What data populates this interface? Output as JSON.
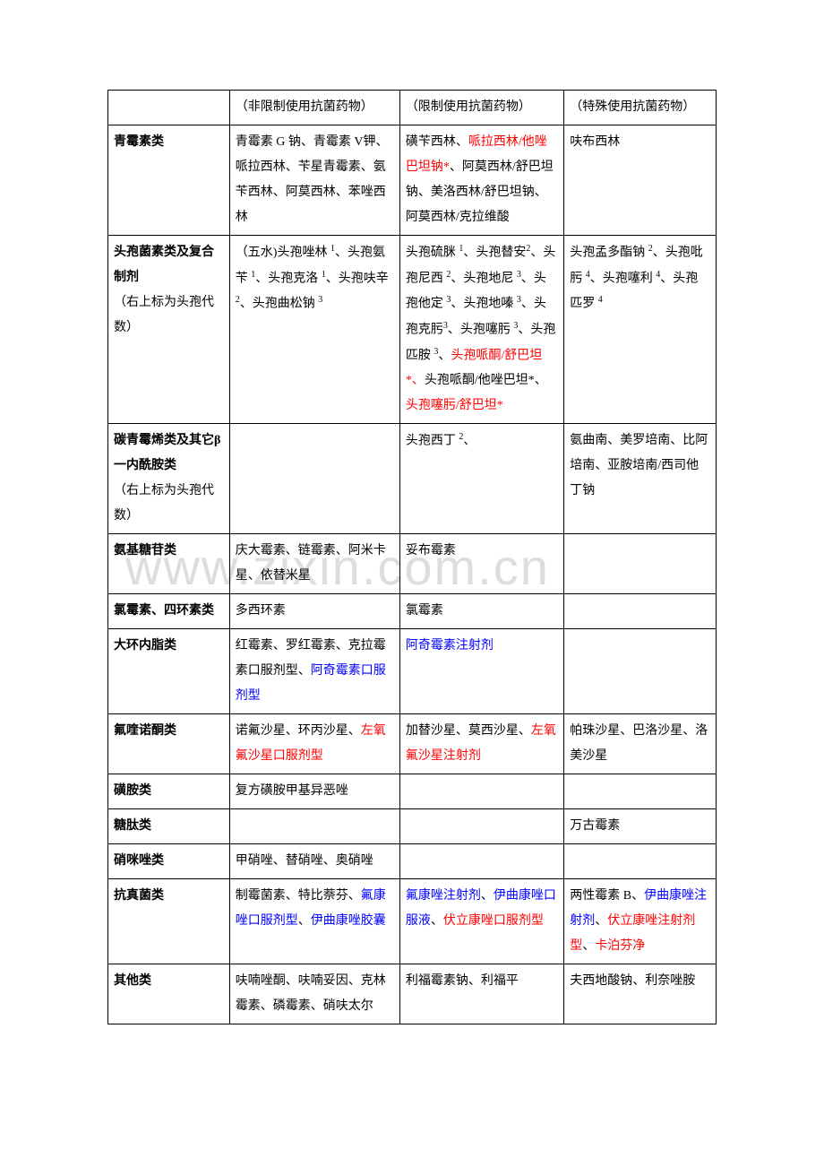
{
  "watermark": "www.zixin.com.cn",
  "header": {
    "col1": "（非限制使用抗菌药物）",
    "col2": "（限制使用抗菌药物）",
    "col3": "（特殊使用抗菌药物）"
  },
  "rows": [
    {
      "category_bold": "青霉素类",
      "category_normal": "",
      "col1_parts": [
        {
          "text": "青霉素 G 钠、青霉素 V钾、哌拉西林、苄星青霉素、氨苄西林、阿莫西林、苯唑西林",
          "color": "black"
        }
      ],
      "col2_parts": [
        {
          "text": "磺苄西林、",
          "color": "black"
        },
        {
          "text": "哌拉西林/他唑巴坦钠*",
          "color": "red"
        },
        {
          "text": "、阿莫西林/舒巴坦钠、美洛西林/舒巴坦钠、阿莫西林/克拉维酸",
          "color": "black"
        }
      ],
      "col3_parts": [
        {
          "text": "呋布西林",
          "color": "black"
        }
      ]
    },
    {
      "category_bold": "头孢菌素类及复合制剂",
      "category_normal": "（右上标为头孢代数）",
      "col1_html": "（五水)头孢唑林 <sup>1</sup>、头孢氨苄 <sup>1</sup>、头孢克洛 <sup>1</sup>、头孢呋辛 <sup>2</sup>、头孢曲松钠 <sup>3</sup>",
      "col2_html": "头孢硫脒 <sup>1</sup>、头孢替安<sup>2</sup>、头孢尼西 <sup>2</sup>、头孢地尼 <sup>3</sup>、头孢他定 <sup>3</sup>、头孢地嗪 <sup>3</sup>、头孢克肟<sup>3</sup>、头孢噻肟 <sup>3</sup>、头孢匹胺 <sup>3</sup>、<span class=\"red\">头孢哌酮/舒巴坦*、</span>头孢哌酮/他唑巴坦*、<span class=\"red\">头孢噻肟/舒巴坦*</span>",
      "col3_html": "头孢孟多酯钠 <sup>2</sup>、头孢吡肟 <sup>4</sup>、头孢噻利 <sup>4</sup>、头孢匹罗 <sup>4</sup>"
    },
    {
      "category_bold": "碳青霉烯类及其它β一内酰胺类",
      "category_normal": "（右上标为头孢代数）",
      "col1_parts": [],
      "col2_html": "头孢西丁 <sup>2</sup>、",
      "col3_parts": [
        {
          "text": "氨曲南、美罗培南、比阿培南、亚胺培南/西司他丁钠",
          "color": "black"
        }
      ]
    },
    {
      "category_bold": "氨基糖苷类",
      "category_normal": "",
      "col1_parts": [
        {
          "text": "庆大霉素、链霉素、阿米卡星、依替米星",
          "color": "black"
        }
      ],
      "col2_parts": [
        {
          "text": "妥布霉素",
          "color": "black"
        }
      ],
      "col3_parts": []
    },
    {
      "category_bold": "氯霉素、四环素类",
      "category_normal": "",
      "col1_parts": [
        {
          "text": "多西环素",
          "color": "black"
        }
      ],
      "col2_parts": [
        {
          "text": "氯霉素",
          "color": "black"
        }
      ],
      "col3_parts": []
    },
    {
      "category_bold": "大环内脂类",
      "category_normal": "",
      "col1_parts": [
        {
          "text": "红霉素、罗红霉素、克拉霉素口服剂型、",
          "color": "black"
        },
        {
          "text": "阿奇霉素口服剂型",
          "color": "blue"
        }
      ],
      "col2_parts": [
        {
          "text": "阿奇霉素注射剂",
          "color": "blue"
        }
      ],
      "col3_parts": []
    },
    {
      "category_bold": "氟喹诺酮类",
      "category_normal": "",
      "col1_parts": [
        {
          "text": "诺氟沙星、环丙沙星、",
          "color": "black"
        },
        {
          "text": "左氧氟沙星口服剂型",
          "color": "red"
        }
      ],
      "col2_parts": [
        {
          "text": "加替沙星、莫西沙星、",
          "color": "black"
        },
        {
          "text": "左氧氟沙星注射剂",
          "color": "red"
        }
      ],
      "col3_parts": [
        {
          "text": "帕珠沙星、巴洛沙星、洛美沙星",
          "color": "black"
        }
      ]
    },
    {
      "category_bold": "磺胺类",
      "category_normal": "",
      "col1_parts": [
        {
          "text": "复方磺胺甲基异恶唑",
          "color": "black"
        }
      ],
      "col2_parts": [],
      "col3_parts": []
    },
    {
      "category_bold": "糖肽类",
      "category_normal": "",
      "col1_parts": [],
      "col2_parts": [],
      "col3_parts": [
        {
          "text": "万古霉素",
          "color": "black"
        }
      ]
    },
    {
      "category_bold": "硝咪唑类",
      "category_normal": "",
      "col1_parts": [
        {
          "text": "甲硝唑、替硝唑、奥硝唑",
          "color": "black"
        }
      ],
      "col2_parts": [],
      "col3_parts": []
    },
    {
      "category_bold": "抗真菌类",
      "category_normal": "",
      "col1_parts": [
        {
          "text": "制霉菌素、特比萘芬、",
          "color": "black"
        },
        {
          "text": "氟康唑口服剂型",
          "color": "blue"
        },
        {
          "text": "、",
          "color": "black"
        },
        {
          "text": "伊曲康唑胶囊",
          "color": "blue"
        }
      ],
      "col2_parts": [
        {
          "text": "氟康唑注射剂",
          "color": "blue"
        },
        {
          "text": "、",
          "color": "black"
        },
        {
          "text": "伊曲康唑口服液",
          "color": "blue"
        },
        {
          "text": "、",
          "color": "black"
        },
        {
          "text": "伏立康唑口服剂型",
          "color": "red"
        }
      ],
      "col3_parts": [
        {
          "text": "两性霉素 B、",
          "color": "black"
        },
        {
          "text": "伊曲康唑注射剂",
          "color": "blue"
        },
        {
          "text": "、",
          "color": "black"
        },
        {
          "text": "伏立康唑注射剂型",
          "color": "red"
        },
        {
          "text": "、",
          "color": "black"
        },
        {
          "text": "卡泊芬净",
          "color": "red"
        }
      ]
    },
    {
      "category_bold": "其他类",
      "category_normal": "",
      "col1_parts": [
        {
          "text": "呋喃唑酮、呋喃妥因、克林霉素、磷霉素、硝呋太尔",
          "color": "black"
        }
      ],
      "col2_parts": [
        {
          "text": "利福霉素钠、利福平",
          "color": "black"
        }
      ],
      "col3_parts": [
        {
          "text": "夫西地酸钠、利奈唑胺",
          "color": "black"
        }
      ]
    }
  ]
}
